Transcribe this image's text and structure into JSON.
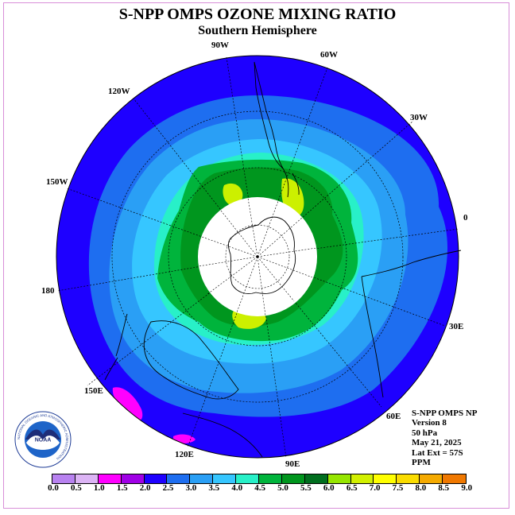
{
  "title": "S-NPP OMPS OZONE MIXING RATIO",
  "subtitle": "Southern Hemisphere",
  "logo_text": "NOAA",
  "logo_ring_text": "NATIONAL OCEANIC AND ATMOSPHERIC ADMINISTRATION",
  "longitude_labels": {
    "w90": "90W",
    "w60": "60W",
    "w30": "30W",
    "e0": "0",
    "e30": "30E",
    "e60": "60E",
    "e90": "90E",
    "e120": "120E",
    "e150": "150E",
    "e180": "180",
    "w150": "150W",
    "w120": "120W"
  },
  "info": {
    "instrument": "S-NPP OMPS NP",
    "version": "Version 8",
    "level": "50 hPa",
    "date": "May 21, 2025",
    "lat_ext": "Lat Ext = 57S",
    "units": "PPM"
  },
  "colorbar": {
    "colors": [
      "#b882f0",
      "#dcb4f5",
      "#ff00ff",
      "#a000e6",
      "#1e00ff",
      "#1e6ef0",
      "#2a9ff5",
      "#36c6ff",
      "#28f0c8",
      "#00b43c",
      "#00961e",
      "#006e1e",
      "#96e600",
      "#d2f000",
      "#ffff00",
      "#fadc00",
      "#f5aa00",
      "#f07800",
      "#f00000",
      "#c80000",
      "#8c5a3c"
    ],
    "ticks": [
      "0.0",
      "0.5",
      "1.0",
      "1.5",
      "2.0",
      "2.5",
      "3.0",
      "3.5",
      "4.0",
      "4.5",
      "5.0",
      "5.5",
      "6.0",
      "6.5",
      "7.0",
      "7.5",
      "8.0",
      "8.5",
      "9.0"
    ]
  },
  "map": {
    "projection": "south-polar-stereographic",
    "latitude_extent": "57S",
    "contour_colors": {
      "outer": "#1e00ff",
      "ring1": "#1e6ef0",
      "ring2": "#2a9ff5",
      "ring3": "#36c6ff",
      "ring4": "#28f0c8",
      "ring5": "#00b43c",
      "ring6": "#00961e",
      "max": "#ccf000",
      "low": "#ff00ff"
    }
  }
}
